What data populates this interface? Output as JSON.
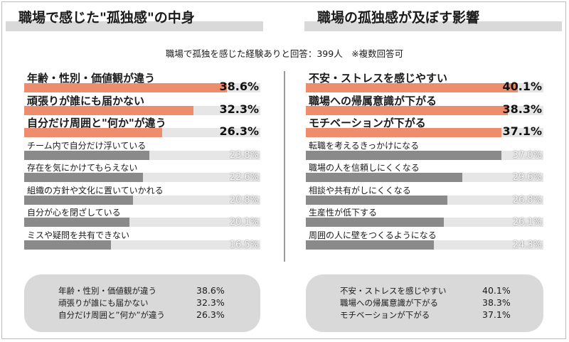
{
  "note": "職場で孤独を感じた経験ありと回答：399人　※複数回答可",
  "chart_data": [
    {
      "type": "bar",
      "title": "職場で感じた\"孤独感\"の中身",
      "categories": [
        "年齢・性別・価値観が違う",
        "頑張りが誰にも届かない",
        "自分だけ周囲と\"何か\"が違う",
        "チーム内で自分だけ浮いている",
        "存在を気にかけてもらえない",
        "組織の方針や文化に置いていかれる",
        "自分が心を閉ざしている",
        "ミスや疑問を共有できない"
      ],
      "values": [
        38.6,
        32.3,
        26.3,
        23.8,
        22.6,
        20.8,
        20.1,
        16.5
      ],
      "value_labels": [
        "38.6%",
        "32.3%",
        "26.3%",
        "23.8%",
        "22.6%",
        "20.8%",
        "20.1%",
        "16.5%"
      ],
      "highlight_count": 3,
      "xlim": [
        0,
        45
      ],
      "colors": {
        "highlight": "#ee8d6e",
        "other": "#8a8a8a",
        "track": "#e6e6e6"
      },
      "summary": [
        {
          "label": "年齢・性別・価値観が違う",
          "value": "38.6%"
        },
        {
          "label": "頑張りが誰にも届かない",
          "value": "32.3%"
        },
        {
          "label": "自分だけ周囲と”何か”が違う",
          "value": "26.3%"
        }
      ]
    },
    {
      "type": "bar",
      "title": "職場の孤独感が及ぼす影響",
      "categories": [
        "不安・ストレスを感じやすい",
        "職場への帰属意識が下がる",
        "モチベーションが下がる",
        "転職を考えるきっかけになる",
        "職場の人を信頼しにくくなる",
        "相談や共有がしにくくなる",
        "生産性が低下する",
        "周囲の人に壁をつくるようになる"
      ],
      "values": [
        40.1,
        38.3,
        37.1,
        37.0,
        29.6,
        26.8,
        26.1,
        24.3
      ],
      "value_labels": [
        "40.1%",
        "38.3%",
        "37.1%",
        "37.0%",
        "29.6%",
        "26.8%",
        "26.1%",
        "24.3%"
      ],
      "highlight_count": 3,
      "xlim": [
        0,
        45
      ],
      "colors": {
        "highlight": "#ee8d6e",
        "other": "#8a8a8a",
        "track": "#e6e6e6"
      },
      "summary": [
        {
          "label": "不安・ストレスを感じやすい",
          "value": "40.1%"
        },
        {
          "label": "職場への帰属意識が下がる",
          "value": "38.3%"
        },
        {
          "label": "モチベーションが下がる",
          "value": "37.1%"
        }
      ]
    }
  ]
}
